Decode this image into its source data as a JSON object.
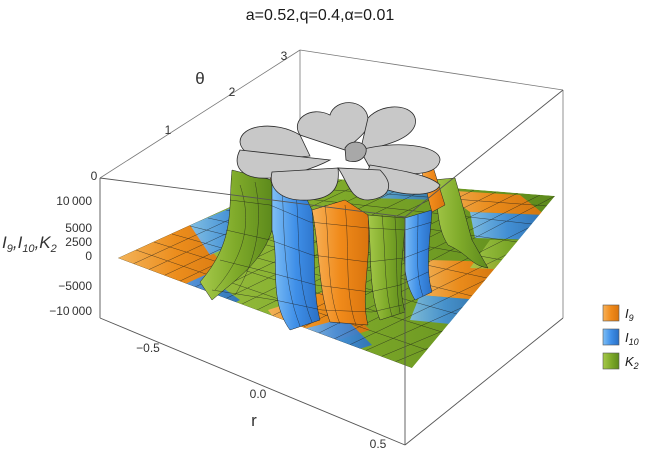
{
  "chart_data": {
    "type": "surface3d",
    "title": "a=0.52,q=0.4,α=0.01",
    "axes": {
      "theta": {
        "label": "θ",
        "ticks": [
          "0",
          "1",
          "2",
          "3"
        ],
        "range": [
          0,
          3
        ]
      },
      "z": {
        "label": "I9,I10,K2",
        "ticks": [
          "10 000",
          "5000",
          "2500",
          "0",
          "−5000",
          "−10 000"
        ],
        "range": [
          -10000,
          10000
        ]
      },
      "r": {
        "label": "r",
        "ticks": [
          "−0.5",
          "0.0",
          "0.5"
        ],
        "range": [
          -0.6,
          0.6
        ]
      }
    },
    "legend": {
      "position": "right",
      "entries": [
        {
          "name": "I9",
          "sub": "9",
          "base": "I",
          "color": "#f0901e"
        },
        {
          "name": "I10",
          "sub": "10",
          "base": "I",
          "color": "#3f8fe8"
        },
        {
          "name": "K2",
          "sub": "2",
          "base": "K",
          "color": "#7faa2a"
        }
      ]
    },
    "clipped_cap_color": "#c8c8c8"
  }
}
